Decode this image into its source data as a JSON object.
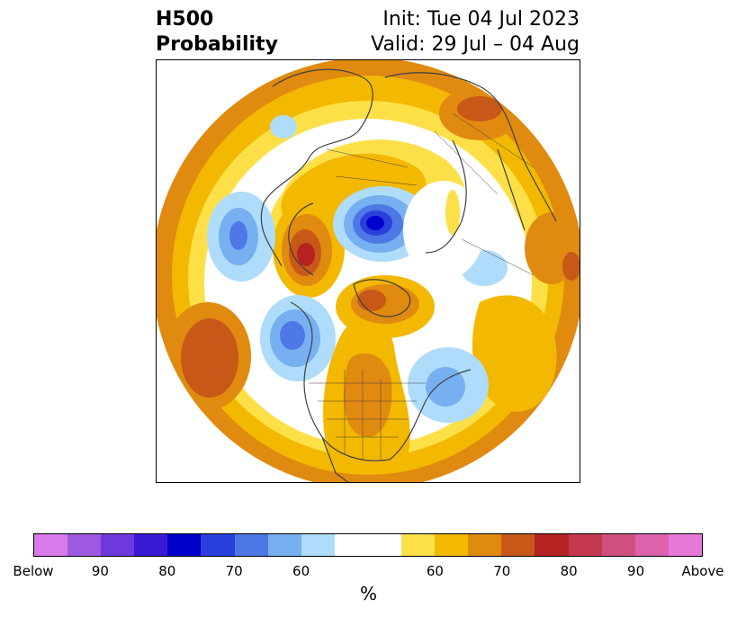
{
  "title": {
    "left_line1": "H500",
    "left_line2": "Probability",
    "right_line1": "Init: Tue 04 Jul 2023",
    "right_line2": "Valid: 29 Jul – 04 Aug"
  },
  "colorbar": {
    "colors": [
      "#d77aea",
      "#9f58e0",
      "#6f38dc",
      "#3a1ad4",
      "#0000cc",
      "#2a3fdc",
      "#4d78e6",
      "#77b0f0",
      "#aedcfa",
      "#ffffff",
      "#ffffff",
      "#fde048",
      "#f3b800",
      "#e08a10",
      "#c85818",
      "#b42322",
      "#c4384f",
      "#cf4f80",
      "#dc62ac",
      "#e77ad8"
    ],
    "ticks": [
      "Below",
      "90",
      "80",
      "70",
      "60",
      "60",
      "70",
      "80",
      "90",
      "Above"
    ],
    "label": "%"
  }
}
